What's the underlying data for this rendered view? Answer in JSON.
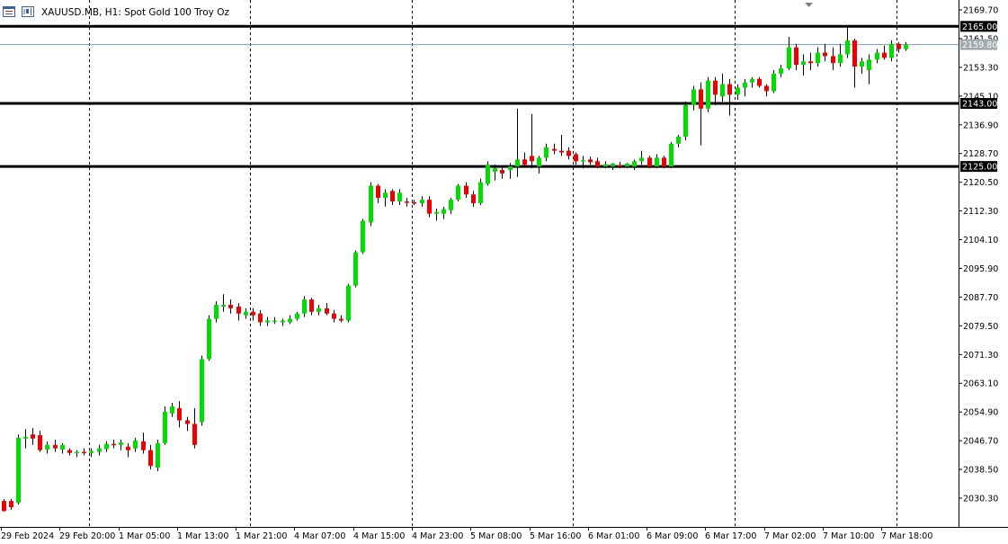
{
  "header": {
    "symbol_label": "XAUUSD.MB, H1:  Spot Gold 100 Troy Oz"
  },
  "colors": {
    "bull": "#00dd00",
    "bear": "#ee0000",
    "wick": "#000000",
    "level_line": "#000000",
    "current_price_line": "#7a9cb8",
    "current_price_tag": "#a0a8b0",
    "background": "#ffffff"
  },
  "icons": [
    "symbol-menu-icon",
    "one-click-trading-icon",
    "chart-shift-marker-icon"
  ],
  "chart_data": {
    "type": "candlestick",
    "symbol": "XAUUSD.MB",
    "timeframe": "H1",
    "ylim": [
      2024.0,
      2171.5
    ],
    "grid": "vertical-dashed",
    "y_ticks": [
      {
        "value": 2169.7,
        "label": "2169.70"
      },
      {
        "value": 2161.5,
        "label": "2161.50"
      },
      {
        "value": 2153.3,
        "label": "2153.30"
      },
      {
        "value": 2145.1,
        "label": "2145.10"
      },
      {
        "value": 2136.9,
        "label": "2136.90"
      },
      {
        "value": 2128.7,
        "label": "2128.70"
      },
      {
        "value": 2120.5,
        "label": "2120.50"
      },
      {
        "value": 2112.3,
        "label": "2112.30"
      },
      {
        "value": 2104.1,
        "label": "2104.10"
      },
      {
        "value": 2095.9,
        "label": "2095.90"
      },
      {
        "value": 2087.7,
        "label": "2087.70"
      },
      {
        "value": 2079.5,
        "label": "2079.50"
      },
      {
        "value": 2071.3,
        "label": "2071.30"
      },
      {
        "value": 2063.1,
        "label": "2063.10"
      },
      {
        "value": 2054.9,
        "label": "2054.90"
      },
      {
        "value": 2046.7,
        "label": "2046.70"
      },
      {
        "value": 2038.5,
        "label": "2038.50"
      },
      {
        "value": 2030.3,
        "label": "2030.30"
      }
    ],
    "x_labels": [
      {
        "index": 0,
        "label": "29 Feb 2024"
      },
      {
        "index": 8,
        "label": "29 Feb 20:00"
      },
      {
        "index": 16,
        "label": "1 Mar 05:00"
      },
      {
        "index": 24,
        "label": "1 Mar 13:00"
      },
      {
        "index": 32,
        "label": "1 Mar 21:00"
      },
      {
        "index": 40,
        "label": "4 Mar 07:00"
      },
      {
        "index": 48,
        "label": "4 Mar 15:00"
      },
      {
        "index": 56,
        "label": "4 Mar 23:00"
      },
      {
        "index": 64,
        "label": "5 Mar 08:00"
      },
      {
        "index": 72,
        "label": "5 Mar 16:00"
      },
      {
        "index": 80,
        "label": "6 Mar 01:00"
      },
      {
        "index": 88,
        "label": "6 Mar 09:00"
      },
      {
        "index": 96,
        "label": "6 Mar 17:00"
      },
      {
        "index": 104,
        "label": "7 Mar 02:00"
      },
      {
        "index": 112,
        "label": "7 Mar 10:00"
      },
      {
        "index": 120,
        "label": "7 Mar 18:00"
      }
    ],
    "vgrid_indices": [
      12,
      34,
      56,
      78,
      100,
      122
    ],
    "levels": [
      {
        "value": 2165.0,
        "label": "2165.00"
      },
      {
        "value": 2143.0,
        "label": "2143.00"
      },
      {
        "value": 2125.0,
        "label": "2125.00"
      }
    ],
    "current_price": {
      "value": 2159.8,
      "label": "2159.80"
    },
    "candles": [
      {
        "o": 2029.5,
        "h": 2030.0,
        "l": 2026.5,
        "c": 2026.6
      },
      {
        "o": 2029.5,
        "h": 2030.1,
        "l": 2027.0,
        "c": 2027.7
      },
      {
        "o": 2029.0,
        "h": 2048.5,
        "l": 2028.5,
        "c": 2047.5
      },
      {
        "o": 2047.3,
        "h": 2050.0,
        "l": 2044.5,
        "c": 2047.8
      },
      {
        "o": 2048.5,
        "h": 2050.3,
        "l": 2045.5,
        "c": 2047.3
      },
      {
        "o": 2048.3,
        "h": 2049.5,
        "l": 2043.5,
        "c": 2044.0
      },
      {
        "o": 2044.2,
        "h": 2046.5,
        "l": 2043.0,
        "c": 2045.5
      },
      {
        "o": 2045.5,
        "h": 2047.0,
        "l": 2043.5,
        "c": 2044.5
      },
      {
        "o": 2044.2,
        "h": 2046.0,
        "l": 2043.0,
        "c": 2045.5
      },
      {
        "o": 2044.0,
        "h": 2044.5,
        "l": 2042.5,
        "c": 2043.2
      },
      {
        "o": 2043.2,
        "h": 2044.0,
        "l": 2042.0,
        "c": 2043.5
      },
      {
        "o": 2043.5,
        "h": 2044.5,
        "l": 2042.5,
        "c": 2043.2
      },
      {
        "o": 2043.2,
        "h": 2044.5,
        "l": 2042.0,
        "c": 2043.8
      },
      {
        "o": 2043.5,
        "h": 2045.5,
        "l": 2042.5,
        "c": 2044.5
      },
      {
        "o": 2044.3,
        "h": 2046.5,
        "l": 2043.5,
        "c": 2045.8
      },
      {
        "o": 2045.8,
        "h": 2047.0,
        "l": 2044.5,
        "c": 2045.5
      },
      {
        "o": 2045.5,
        "h": 2047.0,
        "l": 2044.0,
        "c": 2046.2
      },
      {
        "o": 2045.0,
        "h": 2046.0,
        "l": 2042.0,
        "c": 2044.0
      },
      {
        "o": 2044.5,
        "h": 2047.5,
        "l": 2043.5,
        "c": 2046.8
      },
      {
        "o": 2046.5,
        "h": 2049.0,
        "l": 2043.0,
        "c": 2044.0
      },
      {
        "o": 2044.0,
        "h": 2045.5,
        "l": 2038.5,
        "c": 2039.5
      },
      {
        "o": 2039.0,
        "h": 2047.0,
        "l": 2038.0,
        "c": 2046.0
      },
      {
        "o": 2046.0,
        "h": 2056.5,
        "l": 2045.5,
        "c": 2055.0
      },
      {
        "o": 2054.5,
        "h": 2057.5,
        "l": 2053.5,
        "c": 2056.5
      },
      {
        "o": 2056.0,
        "h": 2058.0,
        "l": 2050.5,
        "c": 2052.5
      },
      {
        "o": 2052.5,
        "h": 2053.5,
        "l": 2049.5,
        "c": 2051.5
      },
      {
        "o": 2051.5,
        "h": 2056.0,
        "l": 2044.5,
        "c": 2045.5
      },
      {
        "o": 2052.0,
        "h": 2071.0,
        "l": 2051.0,
        "c": 2070.0
      },
      {
        "o": 2070.0,
        "h": 2082.5,
        "l": 2069.5,
        "c": 2081.5
      },
      {
        "o": 2081.5,
        "h": 2086.5,
        "l": 2080.5,
        "c": 2085.5
      },
      {
        "o": 2085.0,
        "h": 2088.5,
        "l": 2083.5,
        "c": 2085.5
      },
      {
        "o": 2085.5,
        "h": 2087.0,
        "l": 2083.0,
        "c": 2084.5
      },
      {
        "o": 2085.0,
        "h": 2086.0,
        "l": 2081.0,
        "c": 2083.0
      },
      {
        "o": 2082.5,
        "h": 2084.5,
        "l": 2081.5,
        "c": 2083.5
      },
      {
        "o": 2083.5,
        "h": 2084.5,
        "l": 2081.0,
        "c": 2082.5
      },
      {
        "o": 2083.0,
        "h": 2084.0,
        "l": 2079.5,
        "c": 2080.5
      },
      {
        "o": 2080.5,
        "h": 2082.0,
        "l": 2079.5,
        "c": 2081.0
      },
      {
        "o": 2080.8,
        "h": 2082.0,
        "l": 2080.0,
        "c": 2081.0
      },
      {
        "o": 2080.5,
        "h": 2081.5,
        "l": 2079.5,
        "c": 2081.0
      },
      {
        "o": 2080.5,
        "h": 2082.5,
        "l": 2080.0,
        "c": 2081.5
      },
      {
        "o": 2081.5,
        "h": 2083.5,
        "l": 2081.0,
        "c": 2083.0
      },
      {
        "o": 2083.0,
        "h": 2088.0,
        "l": 2082.0,
        "c": 2087.0
      },
      {
        "o": 2087.0,
        "h": 2087.5,
        "l": 2082.5,
        "c": 2083.5
      },
      {
        "o": 2083.5,
        "h": 2085.5,
        "l": 2082.5,
        "c": 2084.5
      },
      {
        "o": 2084.5,
        "h": 2086.0,
        "l": 2082.5,
        "c": 2083.0
      },
      {
        "o": 2083.0,
        "h": 2084.0,
        "l": 2080.5,
        "c": 2081.5
      },
      {
        "o": 2081.5,
        "h": 2082.5,
        "l": 2080.5,
        "c": 2081.0
      },
      {
        "o": 2081.0,
        "h": 2091.5,
        "l": 2080.5,
        "c": 2091.0
      },
      {
        "o": 2091.0,
        "h": 2101.0,
        "l": 2090.5,
        "c": 2100.5
      },
      {
        "o": 2100.5,
        "h": 2110.0,
        "l": 2100.0,
        "c": 2109.5
      },
      {
        "o": 2109.0,
        "h": 2120.5,
        "l": 2108.0,
        "c": 2119.5
      },
      {
        "o": 2119.5,
        "h": 2120.0,
        "l": 2114.5,
        "c": 2116.0
      },
      {
        "o": 2116.0,
        "h": 2118.5,
        "l": 2113.5,
        "c": 2117.5
      },
      {
        "o": 2118.0,
        "h": 2118.5,
        "l": 2114.0,
        "c": 2115.0
      },
      {
        "o": 2115.0,
        "h": 2118.5,
        "l": 2114.0,
        "c": 2117.5
      },
      {
        "o": 2115.0,
        "h": 2116.0,
        "l": 2113.5,
        "c": 2114.8
      },
      {
        "o": 2114.8,
        "h": 2115.5,
        "l": 2114.0,
        "c": 2114.6
      },
      {
        "o": 2114.5,
        "h": 2116.5,
        "l": 2113.5,
        "c": 2115.5
      },
      {
        "o": 2115.5,
        "h": 2116.5,
        "l": 2110.5,
        "c": 2111.5
      },
      {
        "o": 2111.5,
        "h": 2113.0,
        "l": 2109.5,
        "c": 2112.0
      },
      {
        "o": 2111.5,
        "h": 2113.5,
        "l": 2110.0,
        "c": 2112.8
      },
      {
        "o": 2112.5,
        "h": 2116.0,
        "l": 2111.5,
        "c": 2115.5
      },
      {
        "o": 2115.5,
        "h": 2120.0,
        "l": 2115.0,
        "c": 2119.5
      },
      {
        "o": 2119.5,
        "h": 2120.5,
        "l": 2116.0,
        "c": 2117.0
      },
      {
        "o": 2117.0,
        "h": 2118.0,
        "l": 2113.5,
        "c": 2114.5
      },
      {
        "o": 2114.5,
        "h": 2121.5,
        "l": 2114.0,
        "c": 2120.5
      },
      {
        "o": 2120.0,
        "h": 2126.5,
        "l": 2119.5,
        "c": 2125.5
      },
      {
        "o": 2123.5,
        "h": 2125.5,
        "l": 2121.0,
        "c": 2124.5
      },
      {
        "o": 2124.0,
        "h": 2125.0,
        "l": 2121.5,
        "c": 2123.0
      },
      {
        "o": 2124.0,
        "h": 2126.0,
        "l": 2121.5,
        "c": 2125.0
      },
      {
        "o": 2125.0,
        "h": 2141.5,
        "l": 2122.0,
        "c": 2127.0
      },
      {
        "o": 2127.0,
        "h": 2129.0,
        "l": 2125.0,
        "c": 2125.5
      },
      {
        "o": 2128.0,
        "h": 2140.0,
        "l": 2124.5,
        "c": 2126.5
      },
      {
        "o": 2125.0,
        "h": 2128.0,
        "l": 2123.0,
        "c": 2127.5
      },
      {
        "o": 2127.5,
        "h": 2131.5,
        "l": 2126.5,
        "c": 2130.5
      },
      {
        "o": 2130.0,
        "h": 2131.5,
        "l": 2128.5,
        "c": 2129.5
      },
      {
        "o": 2129.5,
        "h": 2134.0,
        "l": 2128.0,
        "c": 2129.0
      },
      {
        "o": 2129.5,
        "h": 2130.5,
        "l": 2127.0,
        "c": 2128.0
      },
      {
        "o": 2128.5,
        "h": 2129.0,
        "l": 2125.5,
        "c": 2126.5
      },
      {
        "o": 2126.5,
        "h": 2128.0,
        "l": 2124.5,
        "c": 2126.8
      },
      {
        "o": 2127.0,
        "h": 2127.8,
        "l": 2125.5,
        "c": 2126.2
      },
      {
        "o": 2126.5,
        "h": 2127.5,
        "l": 2124.5,
        "c": 2125.0
      },
      {
        "o": 2125.0,
        "h": 2126.5,
        "l": 2124.5,
        "c": 2125.6
      },
      {
        "o": 2125.0,
        "h": 2126.0,
        "l": 2124.0,
        "c": 2125.8
      },
      {
        "o": 2125.4,
        "h": 2126.3,
        "l": 2124.5,
        "c": 2125.3
      },
      {
        "o": 2125.0,
        "h": 2126.0,
        "l": 2124.5,
        "c": 2125.8
      },
      {
        "o": 2125.0,
        "h": 2127.0,
        "l": 2124.0,
        "c": 2126.5
      },
      {
        "o": 2126.5,
        "h": 2129.5,
        "l": 2125.5,
        "c": 2127.5
      },
      {
        "o": 2127.5,
        "h": 2128.0,
        "l": 2124.5,
        "c": 2125.0
      },
      {
        "o": 2125.0,
        "h": 2128.5,
        "l": 2124.5,
        "c": 2127.5
      },
      {
        "o": 2127.5,
        "h": 2128.0,
        "l": 2124.5,
        "c": 2125.0
      },
      {
        "o": 2125.0,
        "h": 2132.0,
        "l": 2124.5,
        "c": 2131.5
      },
      {
        "o": 2131.5,
        "h": 2134.0,
        "l": 2130.5,
        "c": 2133.5
      },
      {
        "o": 2133.5,
        "h": 2143.5,
        "l": 2132.5,
        "c": 2142.5
      },
      {
        "o": 2142.5,
        "h": 2148.0,
        "l": 2141.0,
        "c": 2147.0
      },
      {
        "o": 2147.0,
        "h": 2149.0,
        "l": 2131.0,
        "c": 2141.5
      },
      {
        "o": 2141.5,
        "h": 2150.5,
        "l": 2140.5,
        "c": 2149.5
      },
      {
        "o": 2149.5,
        "h": 2150.5,
        "l": 2142.5,
        "c": 2145.5
      },
      {
        "o": 2145.0,
        "h": 2151.5,
        "l": 2143.5,
        "c": 2148.5
      },
      {
        "o": 2148.5,
        "h": 2150.0,
        "l": 2139.5,
        "c": 2145.5
      },
      {
        "o": 2145.5,
        "h": 2148.5,
        "l": 2144.0,
        "c": 2147.5
      },
      {
        "o": 2147.5,
        "h": 2150.0,
        "l": 2145.0,
        "c": 2149.0
      },
      {
        "o": 2149.0,
        "h": 2150.5,
        "l": 2147.5,
        "c": 2150.0
      },
      {
        "o": 2150.0,
        "h": 2150.5,
        "l": 2147.5,
        "c": 2148.0
      },
      {
        "o": 2148.0,
        "h": 2148.5,
        "l": 2145.0,
        "c": 2146.5
      },
      {
        "o": 2146.5,
        "h": 2152.5,
        "l": 2146.0,
        "c": 2151.5
      },
      {
        "o": 2151.5,
        "h": 2154.0,
        "l": 2150.5,
        "c": 2153.0
      },
      {
        "o": 2153.0,
        "h": 2162.0,
        "l": 2152.5,
        "c": 2159.0
      },
      {
        "o": 2159.0,
        "h": 2160.0,
        "l": 2152.5,
        "c": 2154.0
      },
      {
        "o": 2154.0,
        "h": 2157.0,
        "l": 2151.0,
        "c": 2155.0
      },
      {
        "o": 2155.0,
        "h": 2157.5,
        "l": 2152.5,
        "c": 2154.5
      },
      {
        "o": 2154.5,
        "h": 2159.0,
        "l": 2153.5,
        "c": 2157.5
      },
      {
        "o": 2157.5,
        "h": 2160.0,
        "l": 2155.0,
        "c": 2156.5
      },
      {
        "o": 2156.5,
        "h": 2159.0,
        "l": 2152.5,
        "c": 2154.5
      },
      {
        "o": 2154.5,
        "h": 2160.0,
        "l": 2153.5,
        "c": 2157.0
      },
      {
        "o": 2157.0,
        "h": 2165.0,
        "l": 2156.0,
        "c": 2161.0
      },
      {
        "o": 2161.0,
        "h": 2161.5,
        "l": 2147.5,
        "c": 2153.5
      },
      {
        "o": 2153.5,
        "h": 2156.0,
        "l": 2151.5,
        "c": 2155.0
      },
      {
        "o": 2152.5,
        "h": 2157.0,
        "l": 2148.5,
        "c": 2155.5
      },
      {
        "o": 2155.5,
        "h": 2158.5,
        "l": 2154.5,
        "c": 2157.5
      },
      {
        "o": 2157.5,
        "h": 2159.5,
        "l": 2155.5,
        "c": 2156.0
      },
      {
        "o": 2156.0,
        "h": 2161.0,
        "l": 2155.0,
        "c": 2160.0
      },
      {
        "o": 2160.0,
        "h": 2160.5,
        "l": 2157.5,
        "c": 2158.5
      },
      {
        "o": 2158.5,
        "h": 2160.5,
        "l": 2158.0,
        "c": 2159.8
      }
    ]
  }
}
